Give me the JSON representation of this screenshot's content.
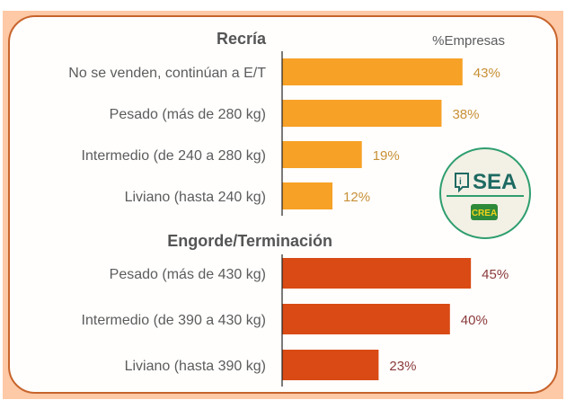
{
  "chart_data": {
    "type": "bar",
    "orientation": "horizontal",
    "unit_label": "%Empresas",
    "groups": [
      {
        "title": "Recría",
        "color": "#f7a126",
        "value_color": "#c89036",
        "categories": [
          "No se venden, continúan a E/T",
          "Pesado (más de 280 kg)",
          "Intermedio (de 240 a 280 kg)",
          "Liviano (hasta 240 kg)"
        ],
        "values": [
          43,
          38,
          19,
          12
        ],
        "value_labels": [
          "43%",
          "38%",
          "19%",
          "12%"
        ]
      },
      {
        "title": "Engorde/Terminación",
        "color": "#d94a14",
        "value_color": "#8a3a3a",
        "categories": [
          "Pesado (más de 430 kg)",
          "Intermedio (de 390 a 430 kg)",
          "Liviano (hasta 390 kg)"
        ],
        "values": [
          45,
          40,
          23
        ],
        "value_labels": [
          "45%",
          "40%",
          "23%"
        ]
      }
    ],
    "xlim": [
      0,
      50
    ],
    "grid": false
  },
  "logo": {
    "name": "SEA",
    "sub": "CREA",
    "ring_color": "#2e9e6e",
    "text_color": "#1e6a62",
    "badge_color": "#2e8a3a",
    "badge_text_color": "#f2d21b"
  }
}
